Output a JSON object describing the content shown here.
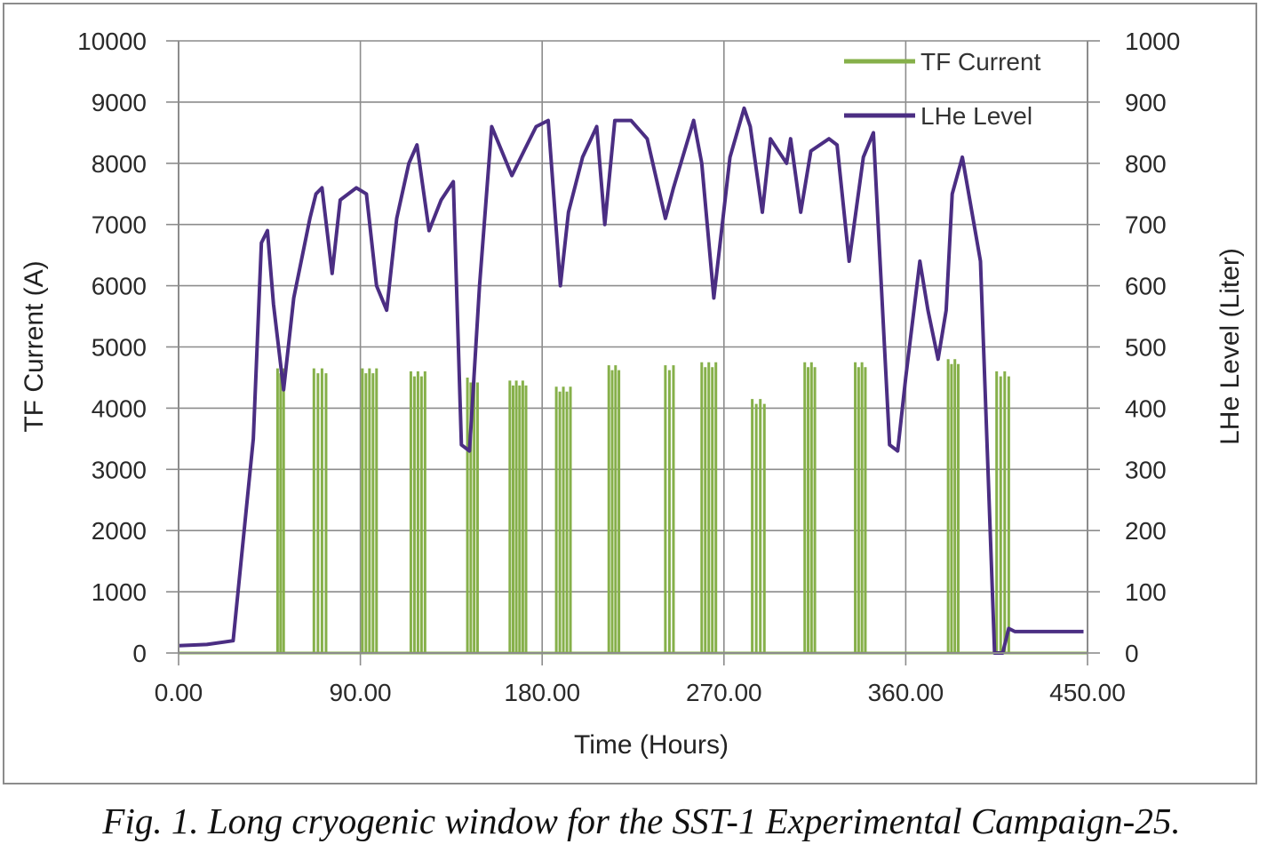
{
  "caption": "Fig. 1. Long cryogenic window for the SST-1 Experimental Campaign-25.",
  "chart_data": {
    "type": "line",
    "title": "",
    "xlabel": "Time (Hours)",
    "ylabel": "TF Current (A)",
    "y2label": "LHe Level (Liter)",
    "xlim": [
      0,
      450
    ],
    "ylim": [
      0,
      10000
    ],
    "y2lim": [
      0,
      1000
    ],
    "x_ticks": [
      "0.00",
      "90.00",
      "180.00",
      "270.00",
      "360.00",
      "450.00"
    ],
    "x_tick_values": [
      0,
      90,
      180,
      270,
      360,
      450
    ],
    "y_ticks": [
      "0",
      "1000",
      "2000",
      "3000",
      "4000",
      "5000",
      "6000",
      "7000",
      "8000",
      "9000",
      "10000"
    ],
    "y2_ticks": [
      "0",
      "100",
      "200",
      "300",
      "400",
      "500",
      "600",
      "700",
      "800",
      "900",
      "1000"
    ],
    "grid": true,
    "legend_position": "top-right",
    "colors": {
      "tf_current": "#86b04a",
      "lhe_level": "#4b2e83",
      "grid": "#8c8c8c",
      "frame": "#8c8c8c"
    },
    "series": [
      {
        "name": "TF Current",
        "axis": "left",
        "pulses": [
          [
            49,
            52,
            4650
          ],
          [
            67,
            73,
            4650
          ],
          [
            91,
            98,
            4650
          ],
          [
            115,
            122,
            4600
          ],
          [
            143,
            148,
            4500
          ],
          [
            164,
            172,
            4450
          ],
          [
            187,
            194,
            4350
          ],
          [
            213,
            218,
            4700
          ],
          [
            241,
            245,
            4700
          ],
          [
            259,
            266,
            4750
          ],
          [
            284,
            290,
            4150
          ],
          [
            310,
            315,
            4750
          ],
          [
            335,
            340,
            4750
          ],
          [
            381,
            386,
            4800
          ],
          [
            405,
            411,
            4600
          ]
        ]
      },
      {
        "name": "LHe Level",
        "axis": "right",
        "x": [
          0,
          14,
          27,
          37,
          41,
          44,
          47,
          52,
          57,
          65,
          68,
          71,
          76,
          80,
          88,
          93,
          98,
          103,
          108,
          114,
          118,
          124,
          130,
          136,
          140,
          144,
          149,
          155,
          165,
          171,
          177,
          183,
          189,
          193,
          200,
          207,
          211,
          216,
          224,
          232,
          241,
          245,
          255,
          259,
          265,
          273,
          280,
          283,
          289,
          293,
          301,
          303,
          308,
          313,
          322,
          326,
          332,
          339,
          344,
          352,
          356,
          360,
          367,
          371,
          376,
          380,
          383,
          388,
          397,
          404,
          408,
          411,
          414,
          418,
          423,
          444,
          448
        ],
        "y": [
          12,
          14,
          20,
          350,
          670,
          690,
          570,
          430,
          580,
          710,
          750,
          760,
          620,
          740,
          760,
          750,
          600,
          560,
          710,
          800,
          830,
          690,
          740,
          770,
          340,
          330,
          600,
          860,
          780,
          820,
          860,
          870,
          600,
          720,
          810,
          860,
          700,
          870,
          870,
          840,
          710,
          760,
          870,
          800,
          580,
          810,
          890,
          860,
          720,
          840,
          800,
          840,
          720,
          820,
          840,
          830,
          640,
          810,
          850,
          340,
          330,
          450,
          640,
          560,
          480,
          560,
          750,
          810,
          640,
          0,
          0,
          40,
          35,
          35,
          35,
          35,
          35
        ]
      }
    ]
  },
  "legend": [
    {
      "label": "TF Current",
      "color": "#86b04a"
    },
    {
      "label": "LHe Level",
      "color": "#4b2e83"
    }
  ]
}
